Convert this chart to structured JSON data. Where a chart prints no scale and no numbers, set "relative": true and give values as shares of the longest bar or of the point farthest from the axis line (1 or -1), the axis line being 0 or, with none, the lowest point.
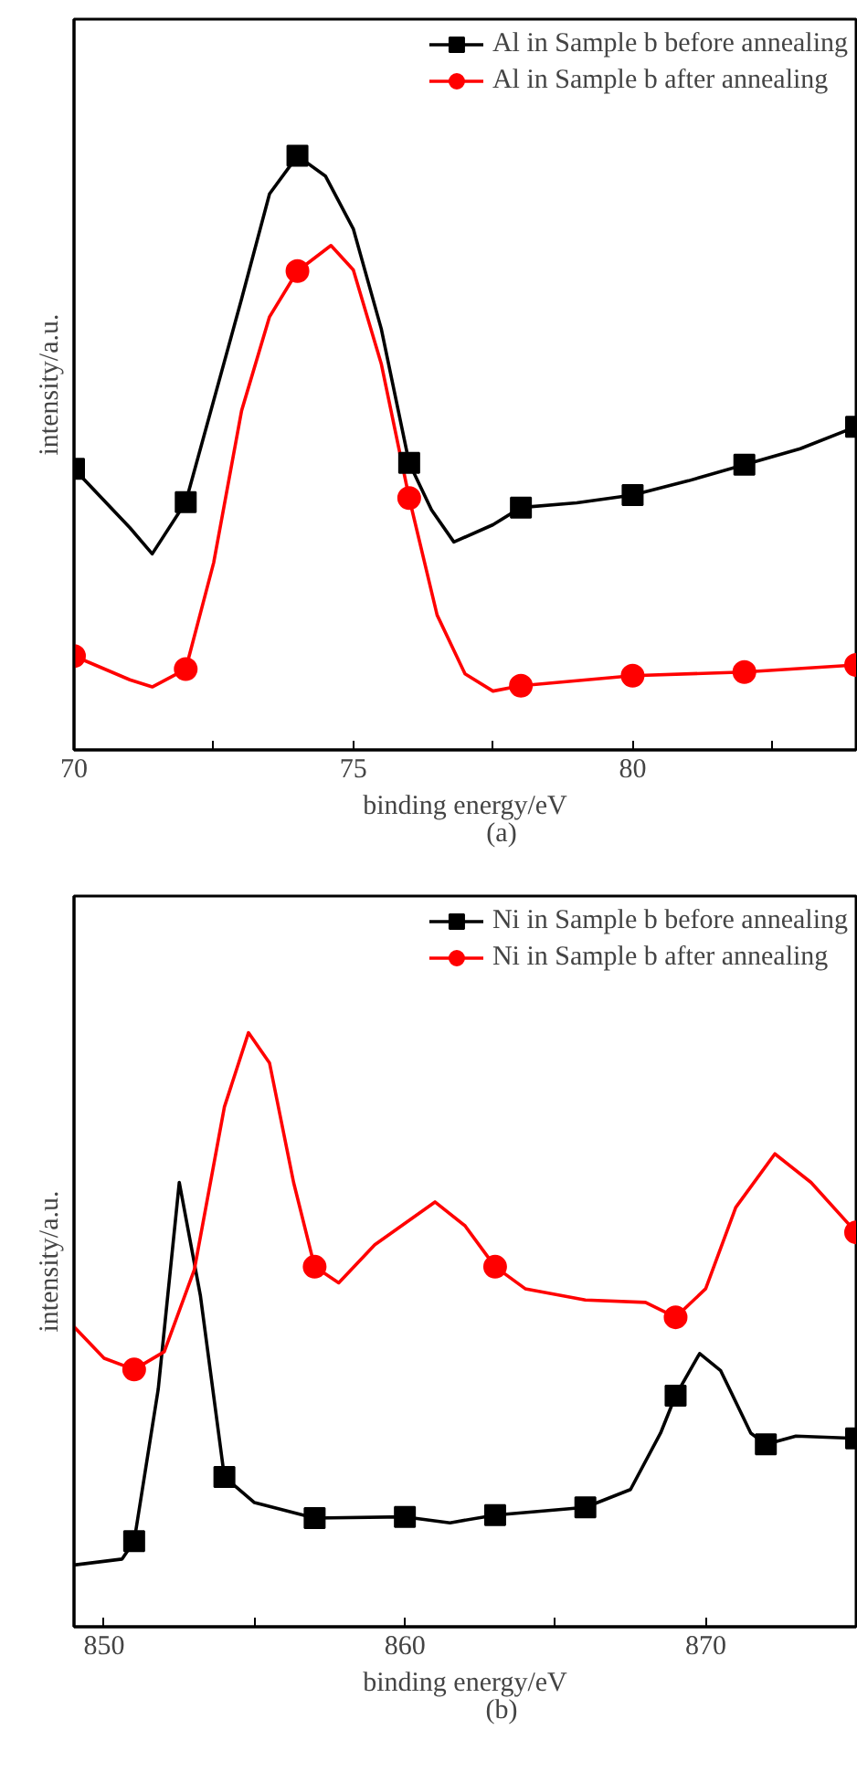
{
  "chart_data": [
    {
      "type": "line",
      "relative": true,
      "xlabel": "binding energy/eV",
      "ylabel": "intensity/a.u.",
      "annotations": [
        "(a)"
      ],
      "xlim": [
        70,
        84
      ],
      "xticks": [
        70,
        {
          "value": 72.5,
          "label": null
        },
        75,
        {
          "value": 77.5,
          "label": null
        },
        80,
        {
          "value": 82.5,
          "label": null
        }
      ],
      "tick_labels": "x",
      "legend": "top right",
      "grid": false,
      "series": [
        {
          "color": "#000000",
          "x": [
            70,
            71,
            71.4,
            72,
            73,
            73.5,
            74,
            74.5,
            75,
            75.5,
            76,
            76.4,
            76.8,
            77.5,
            78,
            79,
            80,
            81,
            82,
            83,
            84
          ],
          "values": [
            0.473,
            0.374,
            0.33,
            0.417,
            0.759,
            0.936,
            1.0,
            0.966,
            0.877,
            0.709,
            0.483,
            0.404,
            0.35,
            0.379,
            0.408,
            0.416,
            0.429,
            0.453,
            0.48,
            0.507,
            0.544
          ]
        },
        {
          "color": "#ff0000",
          "x": [
            70,
            71,
            71.4,
            72,
            72.5,
            73,
            73.5,
            74,
            74.6,
            75,
            75.5,
            76,
            76.5,
            77,
            77.5,
            78,
            80,
            82,
            84
          ],
          "values": [
            0.158,
            0.118,
            0.106,
            0.136,
            0.315,
            0.571,
            0.729,
            0.806,
            0.849,
            0.808,
            0.65,
            0.424,
            0.227,
            0.128,
            0.099,
            0.108,
            0.125,
            0.131,
            0.143
          ]
        },
        {
          "type": "scatter",
          "name": "Al in Sample b before annealing",
          "color": "#000000",
          "marker": "square",
          "x": [
            70,
            72,
            74,
            76,
            78,
            80,
            82,
            84
          ],
          "values": [
            0.473,
            0.417,
            1.0,
            0.483,
            0.408,
            0.429,
            0.48,
            0.544
          ]
        },
        {
          "type": "scatter",
          "name": "Al in Sample b after annealing",
          "color": "#ff0000",
          "marker": "circle",
          "x": [
            70,
            72,
            74,
            76,
            78,
            80,
            82,
            84
          ],
          "values": [
            0.158,
            0.136,
            0.806,
            0.424,
            0.108,
            0.125,
            0.131,
            0.143
          ]
        }
      ]
    },
    {
      "type": "line",
      "relative": true,
      "xlabel": "binding energy/eV",
      "ylabel": "intensity/a.u.",
      "annotations": [
        "(b)"
      ],
      "xlim": [
        849,
        875
      ],
      "xticks": [
        850,
        {
          "value": 855,
          "label": null
        },
        860,
        {
          "value": 865,
          "label": null
        },
        870
      ],
      "tick_labels": "x",
      "legend": "top right",
      "grid": false,
      "series": [
        {
          "color": "#000000",
          "x": [
            849,
            850.6,
            851,
            851.8,
            852.5,
            853.2,
            854,
            855,
            857,
            860,
            861.5,
            863,
            866,
            867.5,
            868.5,
            869,
            869.8,
            870.5,
            871.5,
            872,
            873,
            875
          ],
          "values": [
            0.104,
            0.114,
            0.144,
            0.4,
            0.748,
            0.558,
            0.252,
            0.209,
            0.183,
            0.185,
            0.175,
            0.188,
            0.201,
            0.231,
            0.326,
            0.389,
            0.46,
            0.431,
            0.326,
            0.307,
            0.321,
            0.317
          ]
        },
        {
          "color": "#ff0000",
          "x": [
            849,
            850,
            851,
            852,
            853,
            854,
            854.8,
            855.5,
            856.3,
            857,
            857.8,
            859,
            861,
            862,
            863,
            864,
            866,
            868,
            869,
            870,
            871,
            872.3,
            873.5,
            875
          ],
          "values": [
            0.505,
            0.452,
            0.433,
            0.463,
            0.601,
            0.875,
            1.0,
            0.949,
            0.748,
            0.606,
            0.579,
            0.643,
            0.715,
            0.675,
            0.606,
            0.569,
            0.55,
            0.546,
            0.521,
            0.569,
            0.706,
            0.796,
            0.748,
            0.664
          ]
        },
        {
          "type": "scatter",
          "name": "Ni in Sample b before annealing",
          "color": "#000000",
          "marker": "square",
          "x": [
            851,
            854,
            857,
            860,
            863,
            866,
            869,
            872,
            875
          ],
          "values": [
            0.144,
            0.252,
            0.183,
            0.185,
            0.188,
            0.201,
            0.389,
            0.307,
            0.317
          ]
        },
        {
          "type": "scatter",
          "name": "Ni in Sample b after annealing",
          "color": "#ff0000",
          "marker": "circle",
          "x": [
            851,
            857,
            863,
            869,
            875
          ],
          "values": [
            0.433,
            0.606,
            0.606,
            0.521,
            0.664
          ]
        }
      ]
    }
  ]
}
